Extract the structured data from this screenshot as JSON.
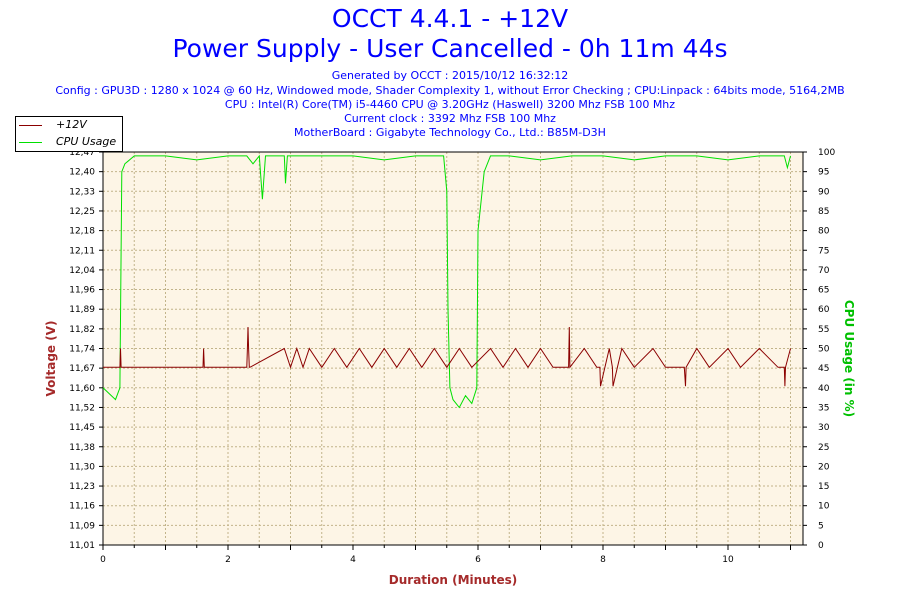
{
  "header": {
    "title": "OCCT 4.4.1 - +12V",
    "subtitle": "Power Supply - User Cancelled - 0h 11m 44s",
    "info_lines": [
      "Generated by OCCT : 2015/10/12 16:32:12",
      "Config : GPU3D : 1280 x 1024 @ 60 Hz, Windowed mode, Shader Complexity 1, without Error Checking ; CPU:Linpack : 64bits mode, 5164,2MB",
      "CPU : Intel(R) Core(TM) i5-4460 CPU @ 3.20GHz (Haswell) 3200 Mhz FSB 100 Mhz",
      "Current clock : 3392 Mhz FSB 100 Mhz",
      "MotherBoard : Gigabyte Technology Co., Ltd.: B85M-D3H"
    ]
  },
  "colors": {
    "voltage": "#8b0000",
    "cpu": "#00e000",
    "axis_left_label": "#a52a2a",
    "axis_right_label": "#00c000",
    "axis_bottom_label": "#a52a2a",
    "plot_bg": "#fdf5e6",
    "grid": "#c2b48a"
  },
  "chart_data": {
    "type": "line",
    "xlabel": "Duration (Minutes)",
    "ylabel": "Voltage (V)",
    "y2label": "CPU Usage (in %)",
    "xlim": [
      0,
      11.2
    ],
    "ylim": [
      11.01,
      12.47
    ],
    "y2lim": [
      0,
      100
    ],
    "x_ticks": [
      "0",
      "2",
      "4",
      "6",
      "8",
      "10"
    ],
    "y_ticks": [
      "11,01",
      "11,09",
      "11,16",
      "11,23",
      "11,30",
      "11,38",
      "11,45",
      "11,52",
      "11,60",
      "11,67",
      "11,74",
      "11,82",
      "11,89",
      "11,96",
      "12,04",
      "12,11",
      "12,18",
      "12,25",
      "12,33",
      "12,40",
      "12,47"
    ],
    "y2_ticks": [
      "0",
      "5",
      "10",
      "15",
      "20",
      "25",
      "30",
      "35",
      "40",
      "45",
      "50",
      "55",
      "60",
      "65",
      "70",
      "75",
      "80",
      "85",
      "90",
      "95",
      "100"
    ],
    "legend_position": "top-left",
    "grid": true,
    "series": [
      {
        "name": "+12V",
        "axis": "left",
        "x": [
          0,
          0.27,
          0.28,
          0.29,
          1.6,
          1.61,
          1.62,
          2.3,
          2.31,
          2.32,
          2.33,
          2.34,
          2.35,
          2.9,
          3.0,
          3.1,
          3.2,
          3.3,
          3.5,
          3.7,
          3.9,
          4.1,
          4.3,
          4.5,
          4.7,
          4.9,
          5.1,
          5.3,
          5.5,
          5.7,
          5.9,
          6.2,
          6.4,
          6.6,
          6.8,
          7.0,
          7.2,
          7.45,
          7.46,
          7.47,
          7.7,
          7.9,
          7.95,
          7.96,
          8.1,
          8.15,
          8.16,
          8.3,
          8.5,
          8.8,
          9.0,
          9.3,
          9.32,
          9.33,
          9.5,
          9.7,
          10.0,
          10.2,
          10.5,
          10.8,
          10.9,
          10.91,
          10.92,
          11.0
        ],
        "values": [
          11.67,
          11.67,
          11.74,
          11.67,
          11.67,
          11.74,
          11.67,
          11.67,
          11.74,
          11.82,
          11.74,
          11.67,
          11.67,
          11.74,
          11.67,
          11.74,
          11.67,
          11.74,
          11.67,
          11.74,
          11.67,
          11.74,
          11.67,
          11.74,
          11.67,
          11.74,
          11.67,
          11.74,
          11.67,
          11.74,
          11.67,
          11.74,
          11.67,
          11.74,
          11.67,
          11.74,
          11.67,
          11.67,
          11.82,
          11.67,
          11.74,
          11.67,
          11.67,
          11.6,
          11.74,
          11.67,
          11.6,
          11.74,
          11.67,
          11.74,
          11.67,
          11.67,
          11.6,
          11.67,
          11.74,
          11.67,
          11.74,
          11.67,
          11.74,
          11.67,
          11.67,
          11.6,
          11.67,
          11.74
        ]
      },
      {
        "name": "CPU Usage",
        "axis": "right",
        "x": [
          0,
          0.2,
          0.27,
          0.3,
          0.35,
          0.5,
          1.0,
          1.5,
          2.0,
          2.3,
          2.4,
          2.5,
          2.55,
          2.6,
          2.8,
          2.9,
          2.92,
          2.95,
          3.5,
          4.0,
          4.5,
          5.0,
          5.3,
          5.45,
          5.5,
          5.52,
          5.55,
          5.6,
          5.7,
          5.8,
          5.9,
          5.98,
          6.0,
          6.1,
          6.2,
          6.5,
          7.0,
          7.5,
          8.0,
          8.5,
          9.0,
          9.5,
          10.0,
          10.5,
          10.9,
          10.95,
          11.0
        ],
        "values": [
          40,
          37,
          40,
          95,
          97,
          99,
          99,
          98,
          99,
          99,
          97,
          99,
          88,
          99,
          99,
          99,
          92,
          99,
          99,
          99,
          98,
          99,
          99,
          99,
          90,
          60,
          40,
          37,
          35,
          38,
          36,
          40,
          80,
          95,
          99,
          99,
          98,
          99,
          99,
          98,
          99,
          99,
          98,
          99,
          99,
          96,
          99
        ]
      }
    ]
  }
}
